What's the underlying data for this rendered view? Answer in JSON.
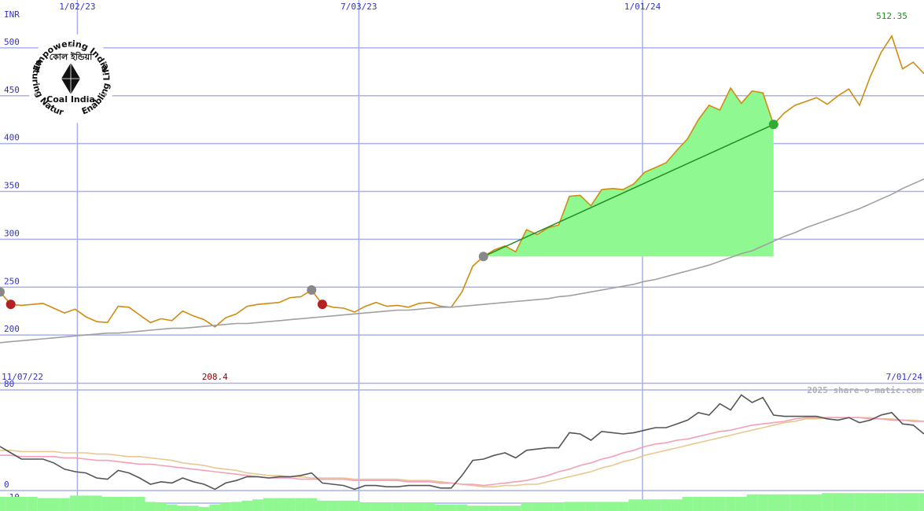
{
  "chart_data": [
    {
      "type": "line",
      "ylabel": "INR",
      "x": [
        0,
        1,
        2,
        3,
        4,
        5,
        6,
        7,
        8,
        9,
        10,
        11,
        12,
        13,
        14,
        15,
        16,
        17,
        18,
        19,
        20,
        21,
        22,
        23,
        24,
        25,
        26,
        27,
        28,
        29,
        30,
        31,
        32,
        33,
        34,
        35,
        36,
        37,
        38,
        39,
        40,
        41,
        42,
        43,
        44,
        45,
        46,
        47,
        48,
        49,
        50,
        51,
        52,
        53,
        54,
        55,
        56,
        57,
        58,
        59,
        60,
        61,
        62,
        63,
        64,
        65,
        66,
        67,
        68,
        69,
        70,
        71,
        72,
        73,
        74,
        75,
        76,
        77,
        78,
        79,
        80,
        81,
        82,
        83,
        84,
        85,
        86
      ],
      "xlim": [
        0,
        86
      ],
      "xticks": [
        {
          "value": 0,
          "label": "11/07/22"
        },
        {
          "value": 7.2,
          "label": "1/02/23"
        },
        {
          "value": 33.4,
          "label": "7/03/23"
        },
        {
          "value": 59.8,
          "label": "1/01/24"
        },
        {
          "value": 86,
          "label": "7/01/24"
        }
      ],
      "ylim": [
        150,
        550
      ],
      "yticks": [
        200,
        250,
        300,
        350,
        400,
        450,
        500
      ],
      "grid": true,
      "series": [
        {
          "color": "#d08c10",
          "values": [
            245,
            232,
            231,
            232,
            233,
            228,
            223,
            227,
            219,
            214,
            213,
            230,
            229,
            221,
            213,
            217,
            215,
            225,
            220,
            216,
            208.4,
            218,
            222,
            230,
            232,
            233,
            234,
            239,
            240,
            247,
            232,
            229,
            228,
            224,
            230,
            234,
            230,
            231,
            229,
            233,
            234,
            230,
            229,
            245,
            272,
            282,
            289,
            293,
            287,
            310,
            305,
            312,
            315,
            345,
            346,
            335,
            352,
            353,
            352,
            358,
            370,
            375,
            380,
            393,
            405,
            425,
            440,
            435,
            458,
            442,
            455,
            453,
            420,
            432,
            440,
            444,
            448,
            441,
            450,
            457,
            440,
            470,
            495,
            512.35,
            478,
            485,
            473
          ]
        },
        {
          "color": "#a0a0a0",
          "values": [
            192,
            193,
            194,
            195,
            196,
            197,
            198,
            199,
            200,
            201,
            202,
            202,
            203,
            204,
            205,
            206,
            207,
            207,
            208,
            209,
            210,
            211,
            212,
            212,
            213,
            214,
            215,
            216,
            217,
            218,
            219,
            220,
            221,
            222,
            223,
            224,
            225,
            226,
            226,
            227,
            228,
            229,
            229,
            230,
            231,
            232,
            233,
            234,
            235,
            236,
            237,
            238,
            240,
            241,
            243,
            245,
            247,
            249,
            251,
            253,
            256,
            258,
            261,
            264,
            267,
            270,
            273,
            277,
            281,
            285,
            288,
            293,
            298,
            303,
            307,
            312,
            316,
            320,
            324,
            328,
            332,
            337,
            342,
            347,
            353,
            358,
            363
          ]
        }
      ],
      "trend": {
        "x": [
          45,
          72
        ],
        "values": [
          282,
          420
        ],
        "color": "#228b22",
        "fill": "#90f890"
      },
      "markers": [
        {
          "x": 0,
          "value": 245,
          "color": "#888888"
        },
        {
          "x": 1,
          "value": 232,
          "color": "#b22222"
        },
        {
          "x": 29,
          "value": 247,
          "color": "#888888"
        },
        {
          "x": 30,
          "value": 232,
          "color": "#b22222"
        },
        {
          "x": 45,
          "value": 282,
          "color": "#888888"
        },
        {
          "x": 72,
          "value": 420,
          "color": "#33aa33"
        }
      ],
      "annotations": [
        {
          "x": 20,
          "value": 208.4,
          "color": "#8b0000",
          "position": "bottom"
        },
        {
          "x": 83,
          "value": 512.35,
          "color": "#228b22",
          "position": "top"
        }
      ]
    },
    {
      "type": "line",
      "x": [
        0,
        1,
        2,
        3,
        4,
        5,
        6,
        7,
        8,
        9,
        10,
        11,
        12,
        13,
        14,
        15,
        16,
        17,
        18,
        19,
        20,
        21,
        22,
        23,
        24,
        25,
        26,
        27,
        28,
        29,
        30,
        31,
        32,
        33,
        34,
        35,
        36,
        37,
        38,
        39,
        40,
        41,
        42,
        43,
        44,
        45,
        46,
        47,
        48,
        49,
        50,
        51,
        52,
        53,
        54,
        55,
        56,
        57,
        58,
        59,
        60,
        61,
        62,
        63,
        64,
        65,
        66,
        67,
        68,
        69,
        70,
        71,
        72,
        73,
        74,
        75,
        76,
        77,
        78,
        79,
        80,
        81,
        82,
        83,
        84,
        85,
        86
      ],
      "xlim": [
        0,
        86
      ],
      "ylim": [
        -16.25,
        85
      ],
      "yticks": [
        80,
        0,
        -10
      ],
      "watermark": "2025 share-o-matic.com",
      "bars": {
        "color": "#90f890",
        "values": [
          -5,
          -5,
          -5,
          -5,
          -6,
          -6,
          -6,
          -4,
          -4,
          -4,
          -5,
          -5,
          -5,
          -5,
          -9,
          -10,
          -11,
          -12,
          -12,
          -13,
          -11,
          -10,
          -9,
          -8,
          -7,
          -6,
          -6,
          -6,
          -6,
          -6,
          -8,
          -8,
          -8,
          -8,
          -10,
          -10,
          -10,
          -10,
          -10,
          -10,
          -10,
          -11,
          -11,
          -11,
          -12,
          -12,
          -12,
          -12,
          -12,
          -10,
          -10,
          -10,
          -10,
          -9,
          -9,
          -9,
          -9,
          -9,
          -9,
          -7,
          -7,
          -7,
          -7,
          -7,
          -5,
          -5,
          -5,
          -5,
          -5,
          -5,
          -3,
          -3,
          -3,
          -3,
          -3,
          -3,
          -3,
          -2,
          -2,
          -2,
          -2,
          -2,
          -2,
          -2,
          -2,
          -2,
          -2
        ]
      },
      "series": [
        {
          "color": "#e8c890",
          "values": [
            32,
            32,
            31,
            31,
            31,
            31,
            30,
            30,
            30,
            29,
            29,
            28,
            27,
            27,
            26,
            25,
            24,
            22,
            21,
            20,
            18,
            17,
            16,
            14,
            13,
            12,
            12,
            11,
            11,
            10,
            10,
            10,
            10,
            9,
            9,
            9,
            9,
            9,
            8,
            8,
            8,
            7,
            6,
            5,
            4,
            3,
            3,
            4,
            4,
            5,
            5,
            7,
            9,
            11,
            13,
            15,
            18,
            20,
            23,
            25,
            28,
            30,
            32,
            34,
            36,
            38,
            40,
            42,
            44,
            46,
            48,
            50,
            52,
            54,
            55,
            57,
            57,
            58,
            58,
            58,
            58,
            58,
            57,
            57,
            56,
            56,
            55
          ]
        },
        {
          "color": "#f4a0b8",
          "values": [
            28,
            28,
            27,
            27,
            27,
            27,
            26,
            26,
            25,
            24,
            24,
            23,
            22,
            21,
            21,
            20,
            19,
            18,
            17,
            16,
            15,
            14,
            13,
            12,
            11,
            10,
            10,
            10,
            9,
            9,
            9,
            9,
            9,
            8,
            8,
            8,
            8,
            8,
            7,
            7,
            7,
            6,
            6,
            5,
            5,
            4,
            5,
            6,
            7,
            8,
            10,
            12,
            15,
            17,
            20,
            22,
            25,
            27,
            30,
            32,
            35,
            37,
            38,
            40,
            41,
            43,
            45,
            47,
            48,
            50,
            52,
            53,
            54,
            55,
            57,
            58,
            58,
            58,
            58,
            58,
            58,
            57,
            57,
            56,
            56,
            55,
            55
          ]
        },
        {
          "color": "#555555",
          "values": [
            35,
            30,
            25,
            25,
            25,
            22,
            17,
            15,
            14,
            10,
            9,
            16,
            14,
            10,
            5,
            7,
            6,
            10,
            7,
            5,
            1,
            6,
            8,
            11,
            11,
            10,
            11,
            11,
            12,
            14,
            6,
            5,
            4,
            1,
            4,
            4,
            3,
            3,
            4,
            4,
            4,
            2,
            2,
            12,
            24,
            25,
            28,
            30,
            26,
            32,
            33,
            34,
            34,
            46,
            45,
            40,
            47,
            46,
            45,
            46,
            48,
            50,
            50,
            53,
            56,
            62,
            60,
            69,
            64,
            76,
            70,
            74,
            60,
            59,
            59,
            59,
            59,
            57,
            56,
            58,
            54,
            56,
            60,
            62,
            53,
            52,
            45
          ]
        }
      ]
    }
  ],
  "logo": {
    "top": "Empowering India",
    "left": "Nurturing Nature",
    "right": "Enabling Life",
    "name": "Coal India",
    "native": "কোল ইন্ডিয়া"
  }
}
